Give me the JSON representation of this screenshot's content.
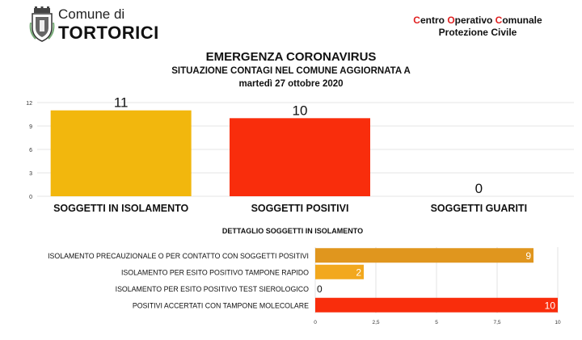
{
  "header": {
    "comune_prefix": "Comune di",
    "comune_name": "TORTORICI",
    "coc_parts": [
      {
        "text": "C",
        "red": true
      },
      {
        "text": "entro ",
        "red": false
      },
      {
        "text": "O",
        "red": true
      },
      {
        "text": "perativo ",
        "red": false
      },
      {
        "text": "C",
        "red": true
      },
      {
        "text": "omunale",
        "red": false
      }
    ],
    "coc_line2": "Protezione Civile",
    "logo_icon": "coat-of-arms-icon"
  },
  "title": "EMERGENZA CORONAVIRUS",
  "subtitle": "SITUAZIONE CONTAGI NEL COMUNE AGGIORNATA A",
  "date": "martedì 27 ottobre 2020",
  "chart_data": [
    {
      "type": "bar",
      "categories": [
        "SOGGETTI IN ISOLAMENTO",
        "SOGGETTI POSITIVI",
        "SOGGETTI GUARITI"
      ],
      "values": [
        11,
        10,
        0
      ],
      "colors": [
        "#f2b70d",
        "#f92d0c",
        "#f92d0c"
      ],
      "ylim": [
        0,
        12
      ],
      "yticks": [
        "0",
        "3",
        "6",
        "9",
        "12"
      ],
      "grid": true
    },
    {
      "type": "bar",
      "orientation": "horizontal",
      "title": "DETTAGLIO SOGGETTI IN ISOLAMENTO",
      "categories": [
        "ISOLAMENTO PRECAUZIONALE O PER CONTATTO CON SOGGETTI POSITIVI",
        "ISOLAMENTO PER ESITO POSITIVO TAMPONE RAPIDO",
        "ISOLAMENTO PER ESITO POSITIVO TEST SIEROLOGICO",
        "POSITIVI ACCERTATI CON TAMPONE MOLECOLARE"
      ],
      "values": [
        9,
        2,
        0,
        10
      ],
      "colors": [
        "#e0961e",
        "#f2a81e",
        "#f2a81e",
        "#f92d0c"
      ],
      "xlim": [
        0,
        10
      ],
      "xticks": [
        "0",
        "2,5",
        "5",
        "7,5",
        "10"
      ],
      "grid": true
    }
  ]
}
